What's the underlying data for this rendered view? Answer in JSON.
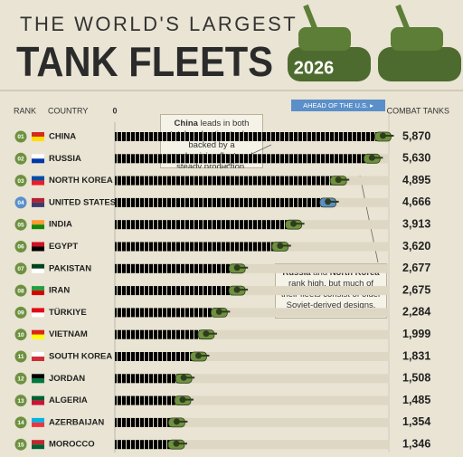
{
  "chart_data": {
    "type": "bar",
    "orientation": "horizontal",
    "title": "THE WORLD'S LARGEST",
    "subtitle": "TANK FLEETS",
    "badge": "2026",
    "rank_header": "RANK",
    "category_header": "COUNTRY",
    "value_header": "COMBAT TANKS",
    "reference_label": "AHEAD OF THE U.S. ▸",
    "ranks": [
      "01",
      "02",
      "03",
      "04",
      "05",
      "06",
      "07",
      "08",
      "09",
      "10",
      "11",
      "12",
      "13",
      "14",
      "15"
    ],
    "categories": [
      "CHINA",
      "RUSSIA",
      "NORTH KOREA",
      "UNITED STATES",
      "INDIA",
      "EGYPT",
      "PAKISTAN",
      "IRAN",
      "TÜRKIYE",
      "VIETNAM",
      "SOUTH KOREA",
      "JORDAN",
      "ALGERIA",
      "AZERBAIJAN",
      "MOROCCO"
    ],
    "values": [
      5870,
      5630,
      4895,
      4666,
      3913,
      3620,
      2677,
      2675,
      2284,
      1999,
      1831,
      1508,
      1485,
      1354,
      1346
    ],
    "value_labels": [
      "5,870",
      "5,630",
      "4,895",
      "4,666",
      "3,913",
      "3,620",
      "2,677",
      "2,675",
      "2,284",
      "1,999",
      "1,831",
      "1,508",
      "1,485",
      "1,354",
      "1,346"
    ],
    "colors": [
      "#6e9140",
      "#6e9140",
      "#6e9140",
      "#5b8fc9",
      "#6e9140",
      "#6e9140",
      "#6e9140",
      "#6e9140",
      "#6e9140",
      "#6e9140",
      "#6e9140",
      "#6e9140",
      "#6e9140",
      "#6e9140",
      "#6e9140"
    ],
    "xlim": [
      0,
      6000
    ],
    "xticks": [
      0
    ],
    "annotations": [
      [
        {
          "text": "China",
          "bold": true
        },
        {
          "text": " leads in both total and active tanks, backed by a modernizing fleet and steady production.",
          "bold": false
        }
      ],
      [
        {
          "text": "Russia",
          "bold": true
        },
        {
          "text": " and ",
          "bold": false
        },
        {
          "text": "North Korea",
          "bold": true
        },
        {
          "text": " rank high, but much of their fleets consist of older Soviet-derived designs.",
          "bold": false
        }
      ]
    ]
  }
}
